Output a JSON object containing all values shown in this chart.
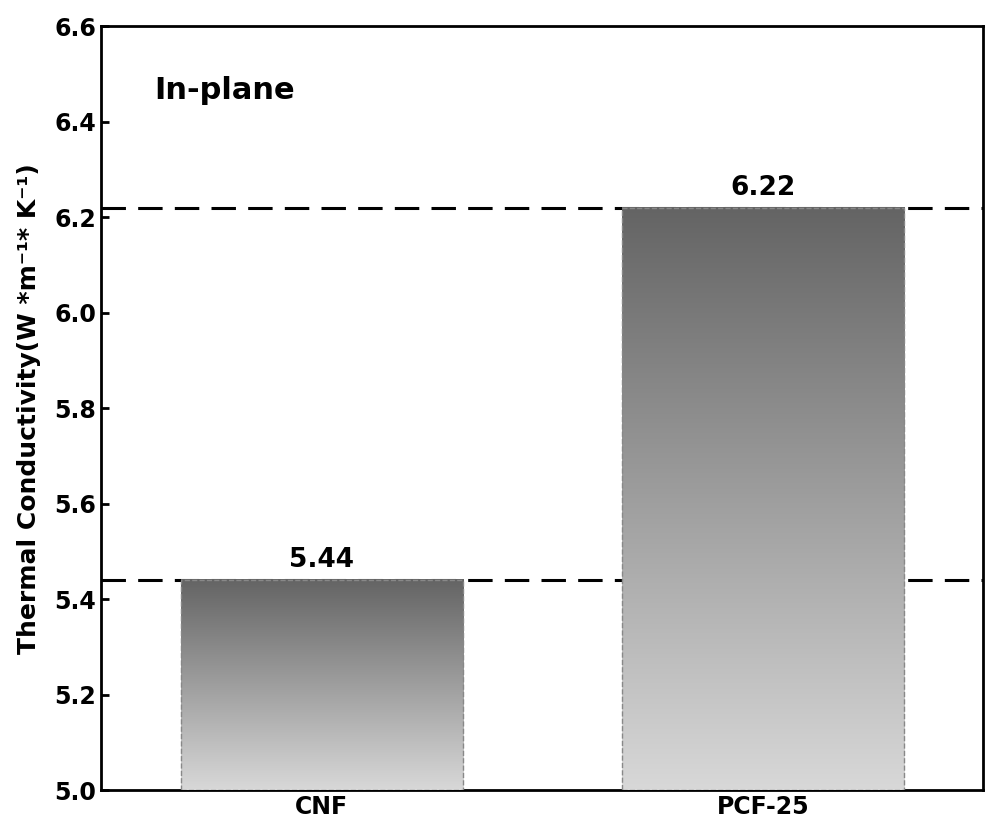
{
  "categories": [
    "CNF",
    "PCF-25"
  ],
  "values": [
    5.44,
    6.22
  ],
  "bar_labels": [
    "5.44",
    "6.22"
  ],
  "ylim": [
    5.0,
    6.6
  ],
  "yticks": [
    5.0,
    5.2,
    5.4,
    5.6,
    5.8,
    6.0,
    6.2,
    6.4,
    6.6
  ],
  "ylabel": "Thermal Conductivity(W *m⁻¹* K⁻¹)",
  "annotation": "In-plane",
  "dashed_lines": [
    5.44,
    6.22
  ],
  "bar_width": 0.32,
  "bar_positions": [
    0.25,
    0.75
  ],
  "background_color": "#ffffff",
  "bar_edge_color": "#888888",
  "dashed_line_color": "#000000",
  "tick_fontsize": 17,
  "annotation_fontsize": 22,
  "bar_label_fontsize": 19,
  "ylabel_fontsize": 18,
  "gradient_top_color": "#646464",
  "gradient_bottom_color": "#d8d8d8"
}
